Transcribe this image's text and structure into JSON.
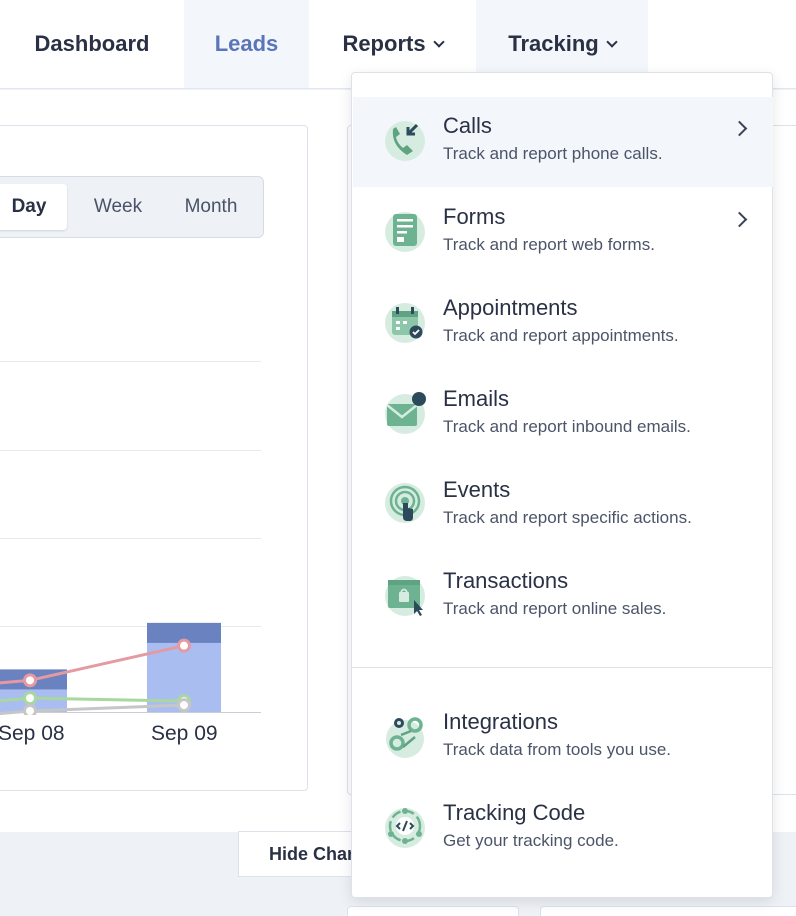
{
  "nav": {
    "dashboard": "Dashboard",
    "leads": "Leads",
    "reports": "Reports",
    "tracking": "Tracking"
  },
  "period_selector": {
    "day": "Day",
    "week": "Week",
    "month": "Month",
    "selected": "Day"
  },
  "chart_data": {
    "type": "bar",
    "categories": [
      "Sep 08",
      "Sep 09"
    ],
    "xlabel": "",
    "ylabel": "",
    "series": [
      {
        "name": "",
        "kind": "bar",
        "color": "#6a83c0",
        "values": [
          43,
          90
        ]
      },
      {
        "name": "",
        "kind": "line",
        "color": "#e59aa2",
        "values": [
          32,
          67
        ]
      },
      {
        "name": "",
        "kind": "line",
        "color": "#a8d8a0",
        "values": [
          14,
          11
        ]
      },
      {
        "name": "",
        "kind": "line",
        "color": "#c6c6c6",
        "values": [
          1,
          7
        ]
      }
    ],
    "grid": true
  },
  "hide_chart_label": "Hide Chart",
  "dropdown": {
    "items": [
      {
        "icon": "phone-call-icon",
        "title": "Calls",
        "desc": "Track and report phone calls.",
        "submenu": true
      },
      {
        "icon": "form-icon",
        "title": "Forms",
        "desc": "Track and report web forms.",
        "submenu": true
      },
      {
        "icon": "calendar-check-icon",
        "title": "Appointments",
        "desc": "Track and report appointments.",
        "submenu": false
      },
      {
        "icon": "envelope-icon",
        "title": "Emails",
        "desc": "Track and report inbound emails.",
        "submenu": false
      },
      {
        "icon": "target-tap-icon",
        "title": "Events",
        "desc": "Track and report specific actions.",
        "submenu": false
      },
      {
        "icon": "shopping-window-icon",
        "title": "Transactions",
        "desc": "Track and report online sales.",
        "submenu": false
      },
      {
        "icon": "gears-icon",
        "title": "Integrations",
        "desc": "Track data from tools you use.",
        "submenu": false
      },
      {
        "icon": "code-icon",
        "title": "Tracking Code",
        "desc": "Get your tracking code.",
        "submenu": false
      }
    ]
  },
  "colors": {
    "accent": "#5a75b8",
    "icon_bg": "#d7ece0",
    "icon_fg": "#4f8f73",
    "bar": "#6a83c0",
    "bar_light": "#a9bdf0"
  }
}
